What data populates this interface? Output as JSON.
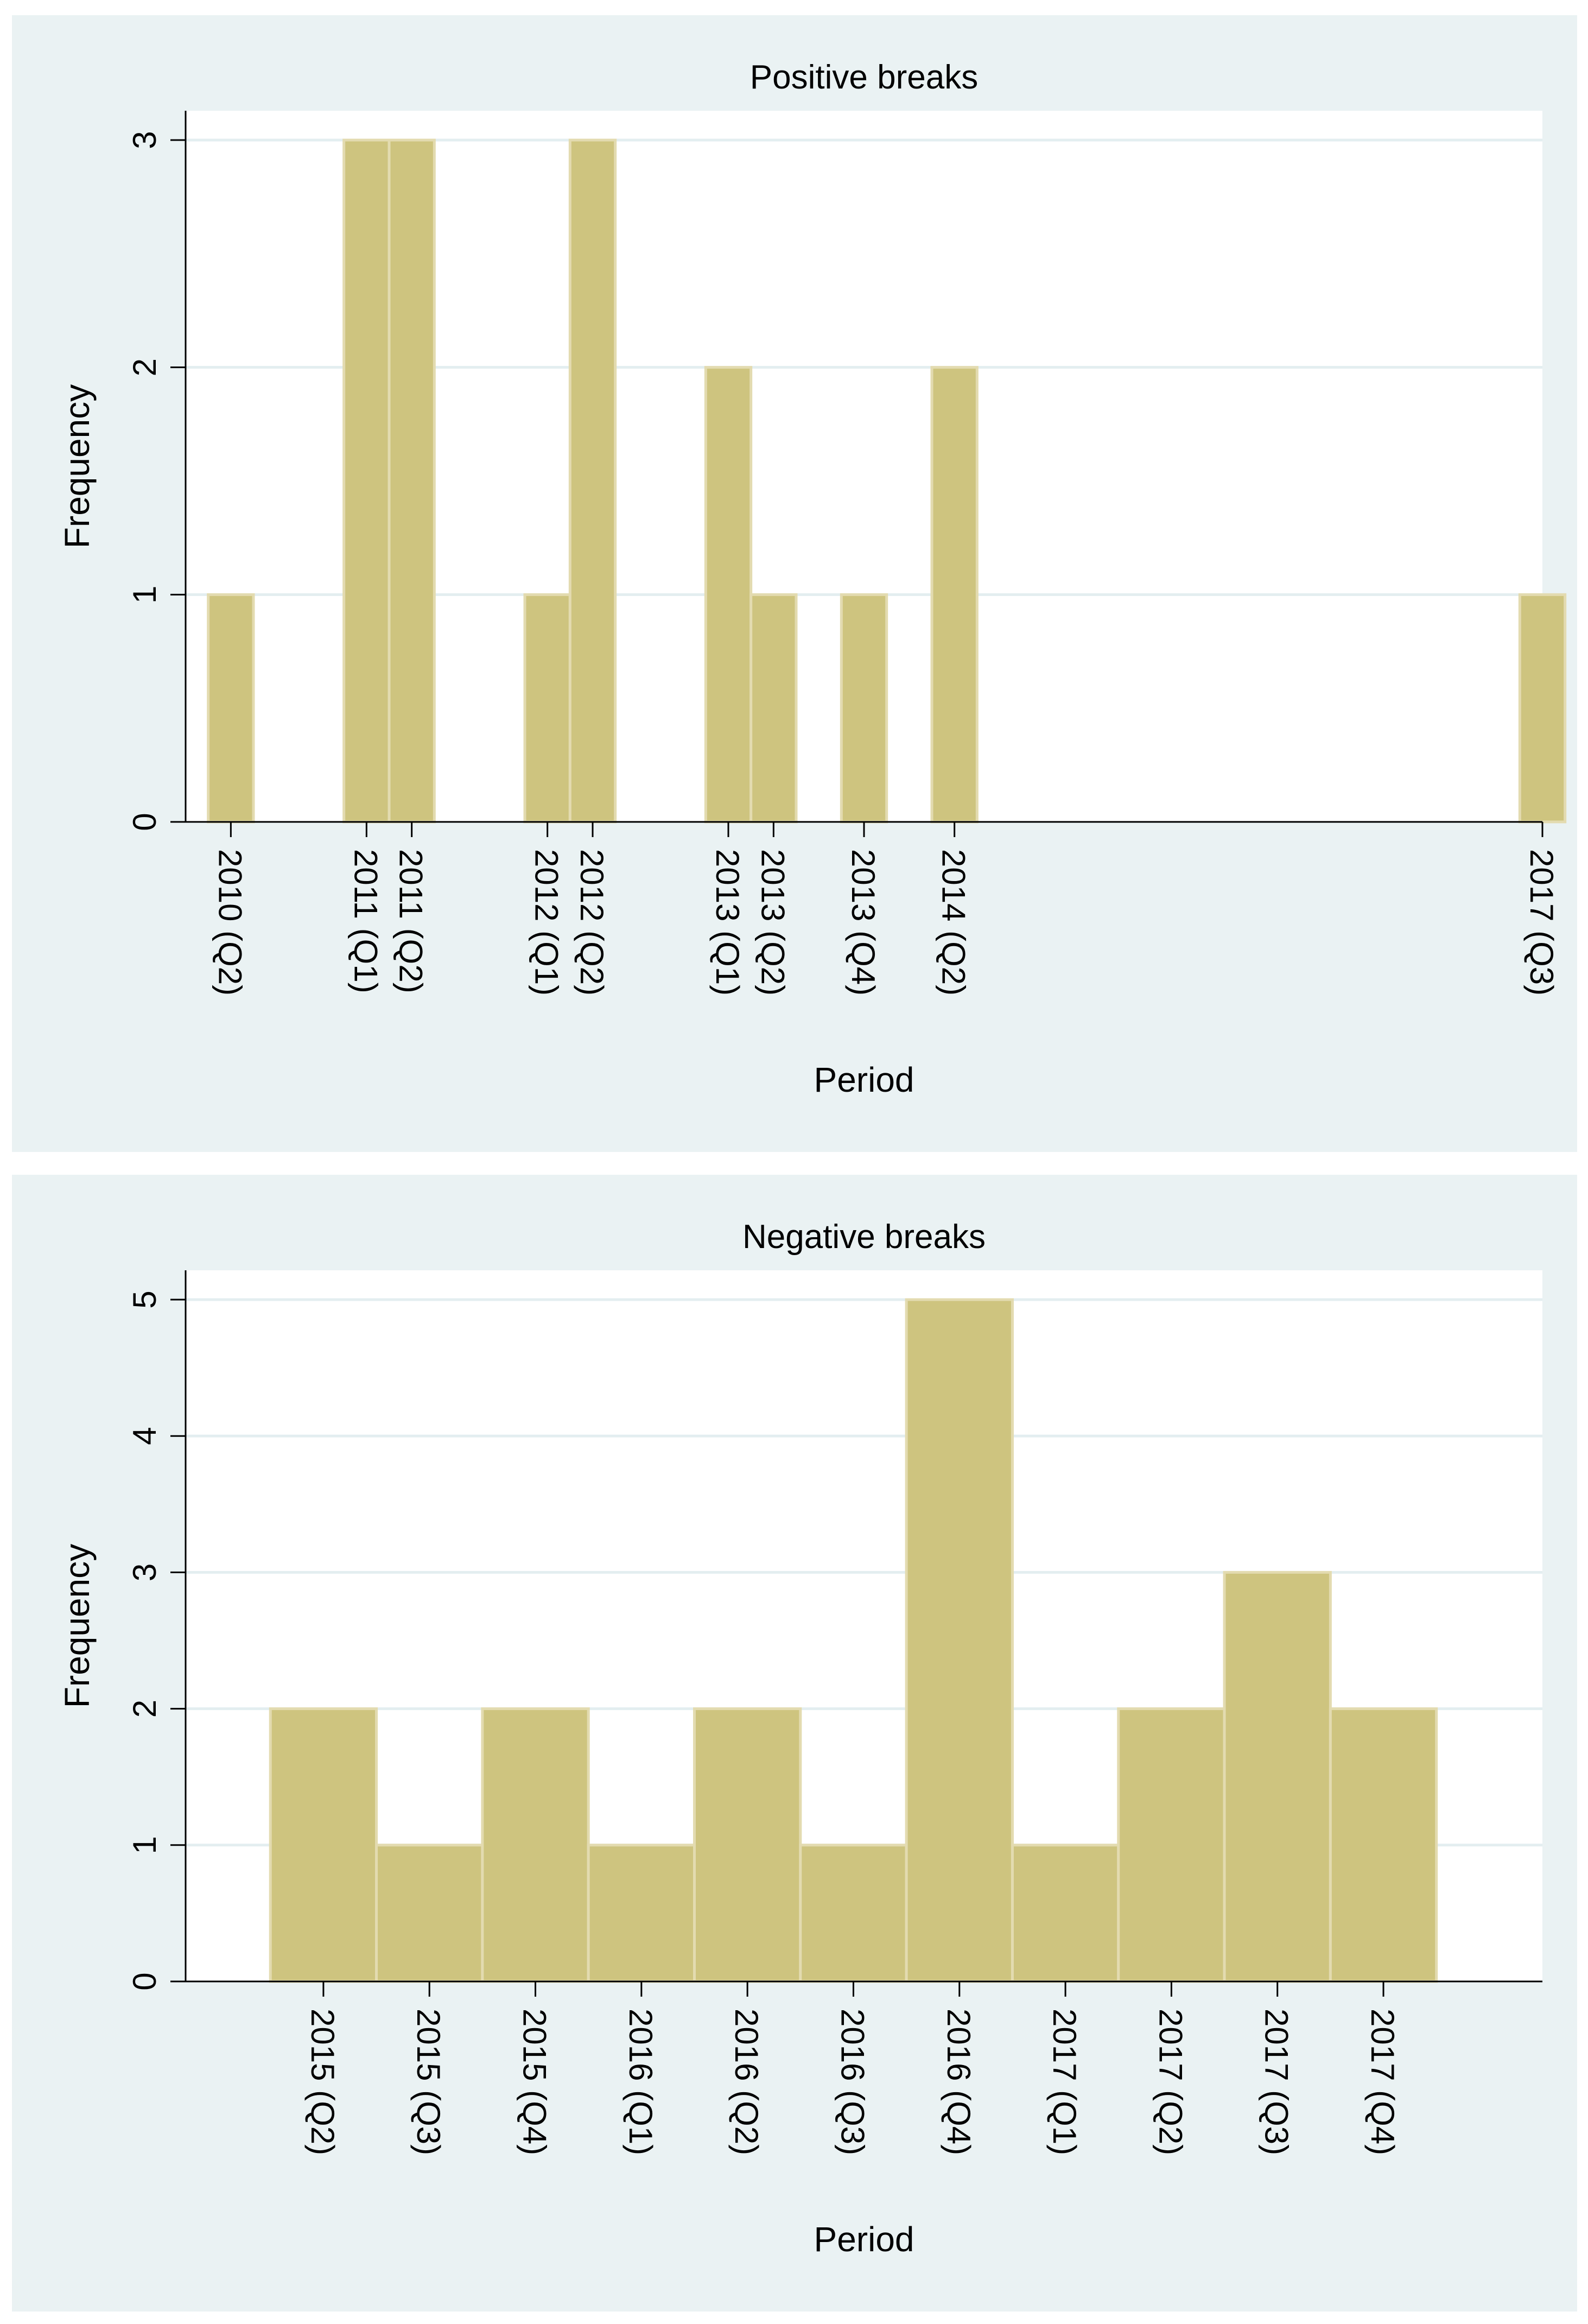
{
  "chart_data": [
    {
      "type": "bar",
      "title": "Positive breaks",
      "xlabel": "Period",
      "ylabel": "Frequency",
      "ylim": [
        0,
        3
      ],
      "yticks": [
        0,
        1,
        2,
        3
      ],
      "x_index_range": [
        9,
        39
      ],
      "categories": [
        "2010 (Q2)",
        "2011 (Q1)",
        "2011 (Q2)",
        "2012 (Q1)",
        "2012 (Q2)",
        "2013 (Q1)",
        "2013 (Q2)",
        "2013 (Q4)",
        "2014 (Q2)",
        "2017 (Q3)"
      ],
      "positions": [
        10,
        13,
        14,
        17,
        18,
        21,
        22,
        24,
        26,
        39
      ],
      "values": [
        1,
        3,
        3,
        1,
        3,
        2,
        1,
        1,
        2,
        1
      ],
      "bar_color": "#cec47f",
      "bar_edge_color": "#e3dbb0",
      "grid": true
    },
    {
      "type": "bar",
      "title": "Negative breaks",
      "xlabel": "Period",
      "ylabel": "Frequency",
      "ylim": [
        0,
        5
      ],
      "yticks": [
        0,
        1,
        2,
        3,
        4,
        5
      ],
      "x_index_range": [
        -0.3,
        12.5
      ],
      "categories": [
        "2015 (Q2)",
        "2015 (Q3)",
        "2015 (Q4)",
        "2016 (Q1)",
        "2016 (Q2)",
        "2016 (Q3)",
        "2016 (Q4)",
        "2017 (Q1)",
        "2017 (Q2)",
        "2017 (Q3)",
        "2017 (Q4)"
      ],
      "positions": [
        1,
        2,
        3,
        4,
        5,
        6,
        7,
        8,
        9,
        10,
        11
      ],
      "values": [
        2,
        1,
        2,
        1,
        2,
        1,
        5,
        1,
        2,
        3,
        2
      ],
      "bar_color": "#cec47f",
      "bar_edge_color": "#e3dbb0",
      "grid": true
    }
  ]
}
